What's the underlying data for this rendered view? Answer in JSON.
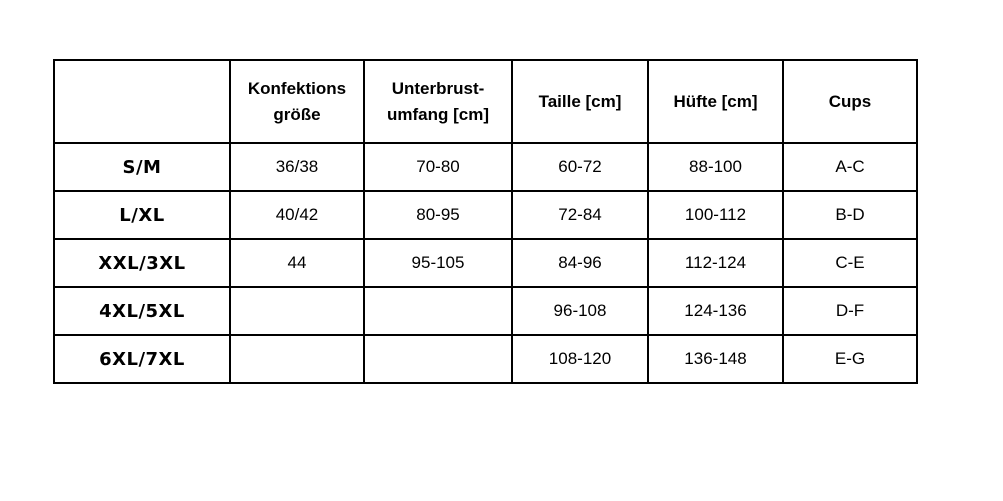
{
  "table": {
    "headers": [
      "",
      "Konfektions größe",
      "Unterbrust- umfang [cm]",
      "Taille [cm]",
      "Hüfte [cm]",
      "Cups"
    ],
    "header_lines": [
      [
        ""
      ],
      [
        "Konfektions",
        "größe"
      ],
      [
        "Unterbrust-",
        "umfang [cm]"
      ],
      [
        "Taille [cm]"
      ],
      [
        "Hüfte [cm]"
      ],
      [
        "Cups"
      ]
    ],
    "rows": [
      [
        "S/M",
        "36/38",
        "70-80",
        "60-72",
        "88-100",
        "A-C"
      ],
      [
        "L/XL",
        "40/42",
        "80-95",
        "72-84",
        "100-112",
        "B-D"
      ],
      [
        "XXL/3XL",
        "44",
        "95-105",
        "84-96",
        "112-124",
        "C-E"
      ],
      [
        "4XL/5XL",
        "",
        "",
        "96-108",
        "124-136",
        "D-F"
      ],
      [
        "6XL/7XL",
        "",
        "",
        "108-120",
        "136-148",
        "E-G"
      ]
    ]
  }
}
